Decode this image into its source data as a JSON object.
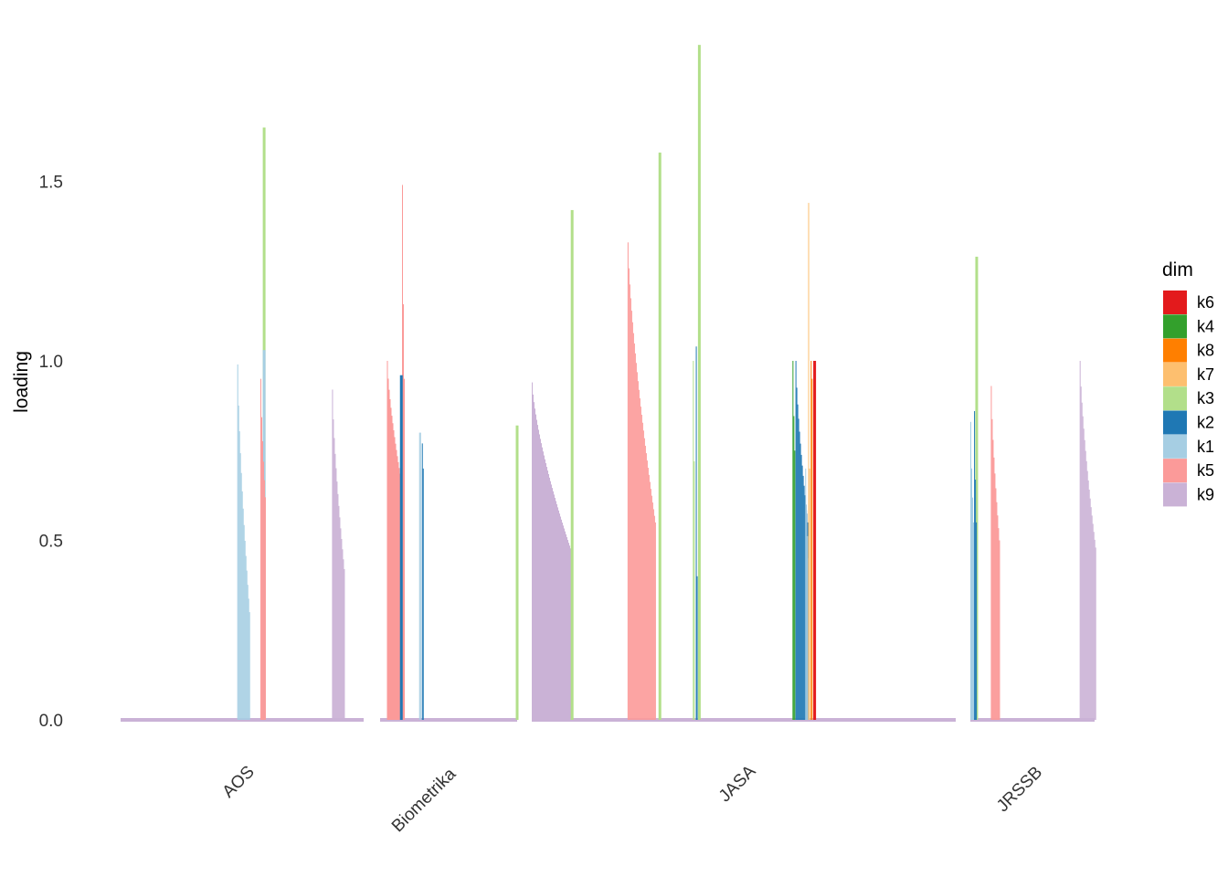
{
  "chart_data": {
    "type": "bar",
    "title": "",
    "xlabel": "",
    "ylabel": "loading",
    "ylim": [
      0,
      2.0
    ],
    "y_ticks": [
      "0.0",
      "0.5",
      "1.0",
      "1.5"
    ],
    "categories": [
      "AOS",
      "Biometrika",
      "JASA",
      "JRSSB"
    ],
    "grid": false,
    "legend": {
      "title": "dim",
      "position": "right",
      "items": [
        {
          "name": "k6",
          "color": "#e31a1c"
        },
        {
          "name": "k4",
          "color": "#33a02c"
        },
        {
          "name": "k8",
          "color": "#ff7f00"
        },
        {
          "name": "k7",
          "color": "#fdbf6f"
        },
        {
          "name": "k3",
          "color": "#b2df8a"
        },
        {
          "name": "k2",
          "color": "#1f78b4"
        },
        {
          "name": "k1",
          "color": "#a6cee3"
        },
        {
          "name": "k5",
          "color": "#fb9a99"
        },
        {
          "name": "k9",
          "color": "#cab2d6"
        }
      ]
    },
    "baseline_color": "#cab2d6",
    "series": [
      {
        "category": "AOS",
        "dim": "k1",
        "from": 0.99,
        "to": 0.3,
        "n": 14,
        "at": 0.48
      },
      {
        "category": "AOS",
        "dim": "k3",
        "from": 1.65,
        "to": 1.65,
        "n": 1,
        "at": 0.585
      },
      {
        "category": "AOS",
        "dim": "k1",
        "from": 1.03,
        "to": 1.03,
        "n": 1,
        "at": 0.585
      },
      {
        "category": "AOS",
        "dim": "k5",
        "from": 0.95,
        "to": 0.62,
        "n": 6,
        "at": 0.575
      },
      {
        "category": "AOS",
        "dim": "k9",
        "from": 0.92,
        "to": 0.42,
        "n": 14,
        "at": 0.87
      },
      {
        "category": "Biometrika",
        "dim": "k5",
        "from": 1.0,
        "to": 0.64,
        "n": 18,
        "at": 0.05
      },
      {
        "category": "Biometrika",
        "dim": "k5",
        "from": 1.49,
        "to": 0.95,
        "n": 3,
        "at": 0.16
      },
      {
        "category": "Biometrika",
        "dim": "k2",
        "from": 0.96,
        "to": 0.96,
        "n": 1,
        "at": 0.145
      },
      {
        "category": "Biometrika",
        "dim": "k1",
        "from": 0.8,
        "to": 0.8,
        "n": 2,
        "at": 0.285
      },
      {
        "category": "Biometrika",
        "dim": "k2",
        "from": 0.77,
        "to": 0.7,
        "n": 2,
        "at": 0.305
      },
      {
        "category": "Biometrika",
        "dim": "k3",
        "from": 0.82,
        "to": 0.82,
        "n": 1,
        "at": 0.99
      },
      {
        "category": "JASA",
        "dim": "k9",
        "from": 0.94,
        "to": 0.47,
        "n": 44,
        "at": 0.0
      },
      {
        "category": "JASA",
        "dim": "k3",
        "from": 1.42,
        "to": 1.42,
        "n": 1,
        "at": 0.092
      },
      {
        "category": "JASA",
        "dim": "k5",
        "from": 1.33,
        "to": 0.55,
        "n": 31,
        "at": 0.226
      },
      {
        "category": "JASA",
        "dim": "k3",
        "from": 1.58,
        "to": 1.58,
        "n": 1,
        "at": 0.299
      },
      {
        "category": "JASA",
        "dim": "k3",
        "from": 1.0,
        "to": 0.72,
        "n": 2,
        "at": 0.38
      },
      {
        "category": "JASA",
        "dim": "k2",
        "from": 1.04,
        "to": 0.4,
        "n": 2,
        "at": 0.387
      },
      {
        "category": "JASA",
        "dim": "k3",
        "from": 1.88,
        "to": 1.88,
        "n": 1,
        "at": 0.392
      },
      {
        "category": "JASA",
        "dim": "k4",
        "from": 1.0,
        "to": 0.75,
        "n": 3,
        "at": 0.615
      },
      {
        "category": "JASA",
        "dim": "k2",
        "from": 1.0,
        "to": 0.55,
        "n": 14,
        "at": 0.622
      },
      {
        "category": "JASA",
        "dim": "k1",
        "from": 0.7,
        "to": 0.45,
        "n": 4,
        "at": 0.645
      },
      {
        "category": "JASA",
        "dim": "k7",
        "from": 1.44,
        "to": 0.7,
        "n": 2,
        "at": 0.652
      },
      {
        "category": "JASA",
        "dim": "k8",
        "from": 1.0,
        "to": 0.95,
        "n": 2,
        "at": 0.658
      },
      {
        "category": "JASA",
        "dim": "k6",
        "from": 1.0,
        "to": 1.0,
        "n": 1,
        "at": 0.664
      },
      {
        "category": "JRSSB",
        "dim": "k1",
        "from": 0.83,
        "to": 0.55,
        "n": 4,
        "at": 0.0
      },
      {
        "category": "JRSSB",
        "dim": "k3",
        "from": 1.29,
        "to": 1.29,
        "n": 1,
        "at": 0.04
      },
      {
        "category": "JRSSB",
        "dim": "k2",
        "from": 0.86,
        "to": 0.55,
        "n": 3,
        "at": 0.03
      },
      {
        "category": "JRSSB",
        "dim": "k5",
        "from": 0.93,
        "to": 0.5,
        "n": 10,
        "at": 0.165
      },
      {
        "category": "JRSSB",
        "dim": "k9",
        "from": 1.0,
        "to": 0.48,
        "n": 18,
        "at": 0.88
      }
    ]
  }
}
